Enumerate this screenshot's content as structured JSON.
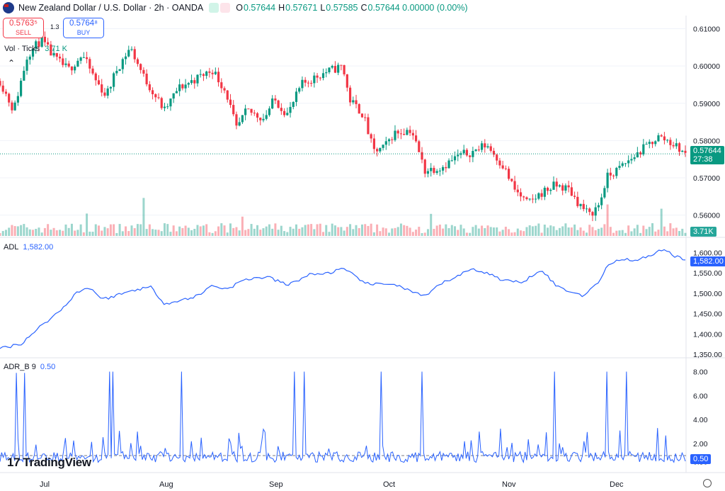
{
  "header": {
    "symbol_title": "New Zealand Dollar / U.S. Dollar · 2h · OANDA",
    "ohlc": [
      {
        "label": "O",
        "value": "0.57644"
      },
      {
        "label": "H",
        "value": "0.57671"
      },
      {
        "label": "L",
        "value": "0.57585"
      },
      {
        "label": "C",
        "value": "0.57644 0.00000 (0.00%)"
      }
    ]
  },
  "trade": {
    "sell_price": "0.5763⁵",
    "sell_label": "SELL",
    "buy_price": "0.5764⁸",
    "buy_label": "BUY",
    "spread": "1.3"
  },
  "volume_legend": {
    "label": "Vol · Ticks",
    "value": "3.71 K"
  },
  "adl_legend": {
    "label": "ADL",
    "value": "1,582.00"
  },
  "adr_legend": {
    "label": "ADR_B 9",
    "value": "0.50"
  },
  "tags": {
    "last_price": "0.57644",
    "countdown": "27:38",
    "volume": "3.71K",
    "adl": "1,582.00",
    "adr": "0.50"
  },
  "logo": "TradingView",
  "x_axis": [
    "Jul",
    "Aug",
    "Sep",
    "Oct",
    "Nov",
    "Dec"
  ],
  "colors": {
    "up": "#089981",
    "down": "#f23645",
    "line": "#2962ff",
    "grid": "#f0f3fa"
  },
  "icons": [
    "flag-icon",
    "chevron-up-icon",
    "gear-icon"
  ],
  "chart_data": [
    {
      "type": "candlestick",
      "name": "NZD/USD",
      "ylim": [
        0.555,
        0.612
      ],
      "y_ticks": [
        "0.61000",
        "0.60000",
        "0.59000",
        "0.58000",
        "0.57000",
        "0.56000"
      ],
      "last_price": 0.57644,
      "close_path": [
        {
          "x": 0.0,
          "y": 0.596
        },
        {
          "x": 0.02,
          "y": 0.588
        },
        {
          "x": 0.04,
          "y": 0.603
        },
        {
          "x": 0.06,
          "y": 0.607
        },
        {
          "x": 0.08,
          "y": 0.602
        },
        {
          "x": 0.1,
          "y": 0.599
        },
        {
          "x": 0.12,
          "y": 0.603
        },
        {
          "x": 0.14,
          "y": 0.596
        },
        {
          "x": 0.155,
          "y": 0.592
        },
        {
          "x": 0.17,
          "y": 0.599
        },
        {
          "x": 0.19,
          "y": 0.605
        },
        {
          "x": 0.21,
          "y": 0.597
        },
        {
          "x": 0.24,
          "y": 0.588
        },
        {
          "x": 0.26,
          "y": 0.594
        },
        {
          "x": 0.29,
          "y": 0.597
        },
        {
          "x": 0.31,
          "y": 0.599
        },
        {
          "x": 0.33,
          "y": 0.593
        },
        {
          "x": 0.345,
          "y": 0.583
        },
        {
          "x": 0.36,
          "y": 0.588
        },
        {
          "x": 0.385,
          "y": 0.586
        },
        {
          "x": 0.4,
          "y": 0.591
        },
        {
          "x": 0.42,
          "y": 0.587
        },
        {
          "x": 0.44,
          "y": 0.595
        },
        {
          "x": 0.47,
          "y": 0.598
        },
        {
          "x": 0.5,
          "y": 0.6
        },
        {
          "x": 0.51,
          "y": 0.591
        },
        {
          "x": 0.53,
          "y": 0.587
        },
        {
          "x": 0.545,
          "y": 0.577
        },
        {
          "x": 0.56,
          "y": 0.578
        },
        {
          "x": 0.575,
          "y": 0.582
        },
        {
          "x": 0.6,
          "y": 0.583
        },
        {
          "x": 0.62,
          "y": 0.572
        },
        {
          "x": 0.645,
          "y": 0.573
        },
        {
          "x": 0.67,
          "y": 0.576
        },
        {
          "x": 0.69,
          "y": 0.577
        },
        {
          "x": 0.71,
          "y": 0.579
        },
        {
          "x": 0.735,
          "y": 0.573
        },
        {
          "x": 0.75,
          "y": 0.567
        },
        {
          "x": 0.77,
          "y": 0.563
        },
        {
          "x": 0.79,
          "y": 0.566
        },
        {
          "x": 0.81,
          "y": 0.568
        },
        {
          "x": 0.83,
          "y": 0.567
        },
        {
          "x": 0.845,
          "y": 0.563
        },
        {
          "x": 0.86,
          "y": 0.56
        },
        {
          "x": 0.875,
          "y": 0.563
        },
        {
          "x": 0.885,
          "y": 0.57
        },
        {
          "x": 0.9,
          "y": 0.572
        },
        {
          "x": 0.92,
          "y": 0.575
        },
        {
          "x": 0.94,
          "y": 0.578
        },
        {
          "x": 0.96,
          "y": 0.581
        },
        {
          "x": 0.975,
          "y": 0.58
        },
        {
          "x": 0.99,
          "y": 0.578
        },
        {
          "x": 1.0,
          "y": 0.5764
        }
      ]
    },
    {
      "type": "line",
      "name": "ADL",
      "ylim": [
        1350,
        1620
      ],
      "y_ticks": [
        "1,600.00",
        "1,550.00",
        "1,500.00",
        "1,450.00",
        "1,400.00",
        "1,350.00"
      ],
      "points": [
        {
          "x": 0.0,
          "y": 1365
        },
        {
          "x": 0.03,
          "y": 1375
        },
        {
          "x": 0.06,
          "y": 1420
        },
        {
          "x": 0.09,
          "y": 1460
        },
        {
          "x": 0.11,
          "y": 1500
        },
        {
          "x": 0.13,
          "y": 1515
        },
        {
          "x": 0.15,
          "y": 1485
        },
        {
          "x": 0.17,
          "y": 1495
        },
        {
          "x": 0.2,
          "y": 1510
        },
        {
          "x": 0.22,
          "y": 1515
        },
        {
          "x": 0.24,
          "y": 1475
        },
        {
          "x": 0.26,
          "y": 1480
        },
        {
          "x": 0.29,
          "y": 1495
        },
        {
          "x": 0.31,
          "y": 1520
        },
        {
          "x": 0.33,
          "y": 1510
        },
        {
          "x": 0.36,
          "y": 1535
        },
        {
          "x": 0.39,
          "y": 1540
        },
        {
          "x": 0.42,
          "y": 1520
        },
        {
          "x": 0.45,
          "y": 1545
        },
        {
          "x": 0.48,
          "y": 1550
        },
        {
          "x": 0.5,
          "y": 1560
        },
        {
          "x": 0.52,
          "y": 1540
        },
        {
          "x": 0.54,
          "y": 1520
        },
        {
          "x": 0.57,
          "y": 1525
        },
        {
          "x": 0.6,
          "y": 1505
        },
        {
          "x": 0.62,
          "y": 1490
        },
        {
          "x": 0.64,
          "y": 1520
        },
        {
          "x": 0.67,
          "y": 1545
        },
        {
          "x": 0.69,
          "y": 1560
        },
        {
          "x": 0.71,
          "y": 1550
        },
        {
          "x": 0.73,
          "y": 1535
        },
        {
          "x": 0.76,
          "y": 1525
        },
        {
          "x": 0.79,
          "y": 1560
        },
        {
          "x": 0.81,
          "y": 1520
        },
        {
          "x": 0.83,
          "y": 1505
        },
        {
          "x": 0.85,
          "y": 1495
        },
        {
          "x": 0.87,
          "y": 1520
        },
        {
          "x": 0.89,
          "y": 1575
        },
        {
          "x": 0.91,
          "y": 1585
        },
        {
          "x": 0.93,
          "y": 1580
        },
        {
          "x": 0.95,
          "y": 1595
        },
        {
          "x": 0.97,
          "y": 1610
        },
        {
          "x": 0.985,
          "y": 1590
        },
        {
          "x": 1.0,
          "y": 1582
        }
      ]
    },
    {
      "type": "line",
      "name": "ADR_B 9",
      "ylim": [
        0,
        8.5
      ],
      "y_ticks": [
        "8.00",
        "6.00",
        "4.00",
        "2.00",
        "0.50"
      ],
      "reference_line": 1.0,
      "baseline": 0.8,
      "spikes": [
        {
          "x": 0.025,
          "y": 7.9
        },
        {
          "x": 0.035,
          "y": 7.9
        },
        {
          "x": 0.16,
          "y": 8.0
        },
        {
          "x": 0.165,
          "y": 8.0
        },
        {
          "x": 0.265,
          "y": 8.0
        },
        {
          "x": 0.385,
          "y": 3.2
        },
        {
          "x": 0.43,
          "y": 8.0
        },
        {
          "x": 0.445,
          "y": 8.0
        },
        {
          "x": 0.555,
          "y": 8.0
        },
        {
          "x": 0.615,
          "y": 8.0
        },
        {
          "x": 0.81,
          "y": 8.0
        },
        {
          "x": 0.885,
          "y": 8.0
        },
        {
          "x": 0.915,
          "y": 8.0
        },
        {
          "x": 0.2,
          "y": 3.0
        },
        {
          "x": 0.7,
          "y": 3.0
        },
        {
          "x": 0.96,
          "y": 3.3
        }
      ],
      "last_value": 0.5
    }
  ]
}
